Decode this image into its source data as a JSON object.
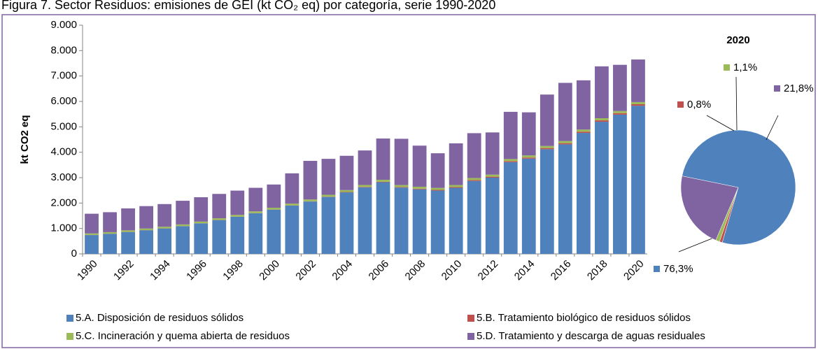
{
  "title": "Figura 7. Sector Residuos: emisiones de GEI (kt CO₂ eq) por categoría, serie 1990-2020",
  "chart_data": [
    {
      "type": "bar",
      "stacked": true,
      "y_label": "kt CO2 eq",
      "categories": [
        "1990",
        null,
        "1992",
        null,
        "1994",
        null,
        "1996",
        null,
        "1998",
        null,
        "2000",
        null,
        "2002",
        null,
        "2004",
        null,
        "2006",
        null,
        "2008",
        null,
        "2010",
        null,
        "2012",
        null,
        "2014",
        null,
        "2016",
        null,
        "2018",
        null,
        "2020"
      ],
      "ylim": [
        0,
        9000
      ],
      "yticks": [
        0,
        {
          "value": 1000,
          "label": "1.000"
        },
        {
          "value": 2000,
          "label": "2.000"
        },
        {
          "value": 3000,
          "label": "3.000"
        },
        {
          "value": 4000,
          "label": "4.000"
        },
        {
          "value": 5000,
          "label": "5.000"
        },
        {
          "value": 6000,
          "label": "6.000"
        },
        {
          "value": 7000,
          "label": "7.000"
        },
        {
          "value": 8000,
          "label": "8.000"
        },
        {
          "value": 9000,
          "label": "9.000"
        }
      ],
      "grid": false,
      "series": [
        {
          "name": "5.A. Disposición de residuos sólidos",
          "color": "#4f81bd",
          "values": [
            740,
            790,
            860,
            930,
            1000,
            1090,
            1200,
            1330,
            1460,
            1600,
            1740,
            1900,
            2060,
            2240,
            2420,
            2620,
            2820,
            2610,
            2540,
            2490,
            2600,
            2870,
            3000,
            3610,
            3750,
            4120,
            4310,
            4760,
            5200,
            5480,
            5830
          ]
        },
        {
          "name": "5.B. Tratamiento biológico de residuos sólidos",
          "color": "#c0504d",
          "values": [
            5,
            5,
            5,
            5,
            5,
            5,
            5,
            5,
            5,
            5,
            5,
            8,
            10,
            12,
            15,
            18,
            20,
            22,
            25,
            28,
            30,
            35,
            38,
            40,
            42,
            45,
            48,
            50,
            55,
            58,
            61
          ]
        },
        {
          "name": "5.C. Incineración y quema abierta de residuos",
          "color": "#9bbb59",
          "values": [
            60,
            60,
            62,
            62,
            64,
            64,
            66,
            66,
            68,
            68,
            70,
            70,
            72,
            72,
            74,
            74,
            76,
            76,
            78,
            78,
            80,
            80,
            80,
            82,
            82,
            82,
            83,
            83,
            84,
            84,
            84
          ]
        },
        {
          "name": "5.D. Tratamiento y descarga de aguas residuales",
          "color": "#8064a2",
          "values": [
            775,
            785,
            863,
            883,
            891,
            931,
            959,
            959,
            957,
            927,
            915,
            1192,
            1518,
            1416,
            1351,
            1358,
            1624,
            1822,
            1617,
            1364,
            1640,
            1765,
            1662,
            1858,
            1696,
            2023,
            2289,
            1937,
            2041,
            1818,
            1675
          ]
        }
      ]
    },
    {
      "type": "pie",
      "title": "2020",
      "values": [
        76.3,
        0.8,
        1.1,
        21.8
      ],
      "value_labels": [
        "76,3%",
        "0,8%",
        "1,1%",
        "21,8%"
      ],
      "colors": [
        "#4f81bd",
        "#c0504d",
        "#9bbb59",
        "#8064a2"
      ]
    }
  ]
}
